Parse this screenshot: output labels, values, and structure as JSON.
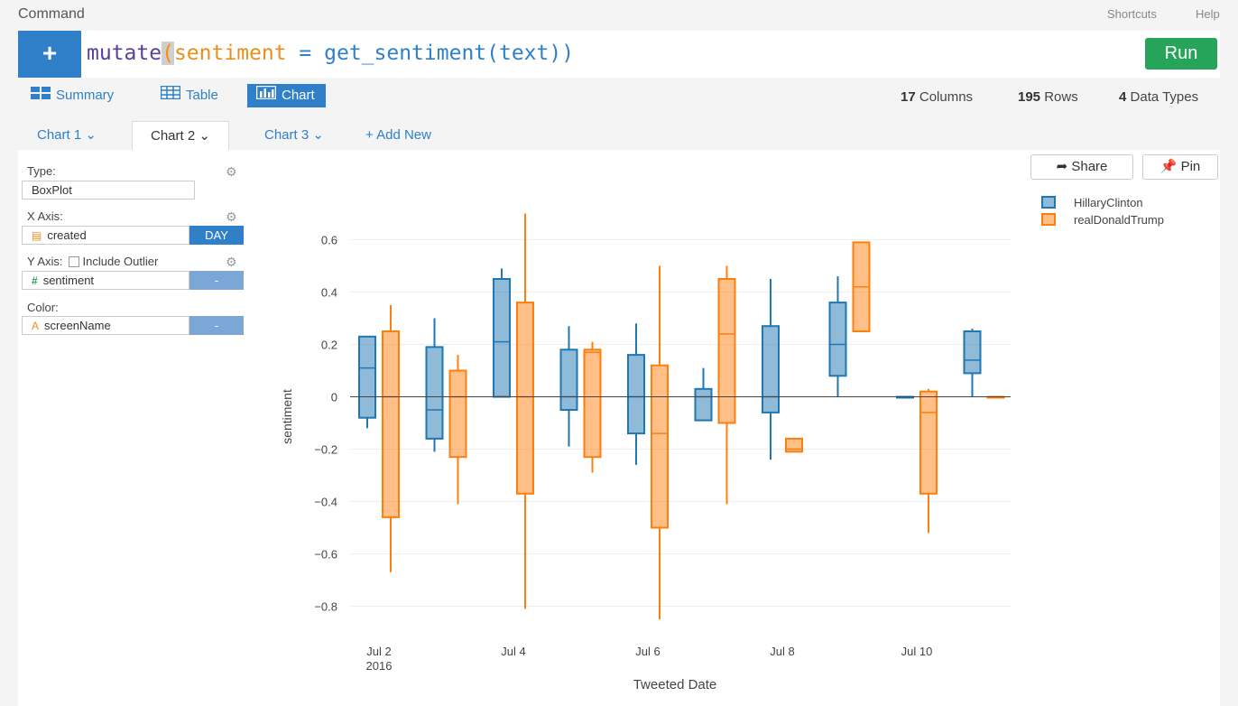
{
  "header": {
    "title": "Command",
    "shortcuts": "Shortcuts",
    "help": "Help"
  },
  "command": {
    "plus": "+",
    "fn": "mutate",
    "open_paren": "(",
    "arg": "sentiment",
    "eq": " = ",
    "call": "get_sentiment(text))",
    "run_label": "Run"
  },
  "view_tabs": {
    "summary": "Summary",
    "table": "Table",
    "chart": "Chart"
  },
  "stats": {
    "columns": "17",
    "columns_label": "Columns",
    "rows": "195",
    "rows_label": "Rows",
    "types": "4",
    "types_label": "Data Types"
  },
  "chart_tabs": {
    "tab1": "Chart 1",
    "tab2": "Chart 2",
    "tab3": "Chart 3",
    "add": "+ Add New"
  },
  "config": {
    "type_label": "Type:",
    "type_value": "BoxPlot",
    "x_label": "X Axis:",
    "x_value": "created",
    "x_unit": "DAY",
    "y_label": "Y Axis:",
    "y_include_outlier": "Include Outlier",
    "y_value": "sentiment",
    "y_btn": "-",
    "color_label": "Color:",
    "color_value": "screenName",
    "color_btn": "-"
  },
  "actions": {
    "share": "Share",
    "pin": "Pin"
  },
  "colors": {
    "accent": "#2f80c8",
    "run": "#26a55a",
    "clinton": "#1f77b4",
    "trump": "#ff7f0e"
  },
  "chart_data": {
    "type": "box",
    "xlabel": "Tweeted Date",
    "ylabel": "sentiment",
    "ylim": [
      -0.85,
      0.7
    ],
    "yticks": [
      0.6,
      0.4,
      0.2,
      0,
      -0.2,
      -0.4,
      -0.6,
      -0.8
    ],
    "ytick_labels": [
      "0.6",
      "0.4",
      "0.2",
      "0",
      "−0.2",
      "−0.4",
      "−0.6",
      "−0.8"
    ],
    "xticks": [
      "2016-07-02",
      "2016-07-04",
      "2016-07-06",
      "2016-07-08",
      "2016-07-10"
    ],
    "xtick_labels": [
      "Jul 2",
      "Jul 4",
      "Jul 6",
      "Jul 8",
      "Jul 10"
    ],
    "xtick_sub": "2016",
    "x_dates": [
      "2016-07-02",
      "2016-07-03",
      "2016-07-04",
      "2016-07-05",
      "2016-07-06",
      "2016-07-07",
      "2016-07-08",
      "2016-07-09",
      "2016-07-10",
      "2016-07-11"
    ],
    "legend_position": "top-right",
    "series": [
      {
        "name": "HillaryClinton",
        "boxes": [
          {
            "date": "2016-07-02",
            "min": -0.12,
            "q1": -0.08,
            "median": 0.11,
            "q3": 0.23,
            "max": 0.23
          },
          {
            "date": "2016-07-03",
            "min": -0.21,
            "q1": -0.16,
            "median": -0.05,
            "q3": 0.19,
            "max": 0.3
          },
          {
            "date": "2016-07-04",
            "min": 0.0,
            "q1": 0.0,
            "median": 0.21,
            "q3": 0.45,
            "max": 0.49
          },
          {
            "date": "2016-07-05",
            "min": -0.19,
            "q1": -0.05,
            "median": 0.0,
            "q3": 0.18,
            "max": 0.27
          },
          {
            "date": "2016-07-06",
            "min": -0.26,
            "q1": -0.14,
            "median": 0.0,
            "q3": 0.16,
            "max": 0.28
          },
          {
            "date": "2016-07-07",
            "min": -0.09,
            "q1": -0.09,
            "median": 0.0,
            "q3": 0.03,
            "max": 0.11
          },
          {
            "date": "2016-07-08",
            "min": -0.24,
            "q1": -0.06,
            "median": 0.0,
            "q3": 0.27,
            "max": 0.45
          },
          {
            "date": "2016-07-09",
            "min": 0.0,
            "q1": 0.08,
            "median": 0.2,
            "q3": 0.36,
            "max": 0.46
          },
          {
            "date": "2016-07-10",
            "min": 0.0,
            "q1": 0.0,
            "median": 0.0,
            "q3": 0.0,
            "max": 0.0
          },
          {
            "date": "2016-07-11",
            "min": 0.0,
            "q1": 0.09,
            "median": 0.14,
            "q3": 0.25,
            "max": 0.26
          }
        ]
      },
      {
        "name": "realDonaldTrump",
        "boxes": [
          {
            "date": "2016-07-02",
            "min": -0.67,
            "q1": -0.46,
            "median": 0.0,
            "q3": 0.25,
            "max": 0.35
          },
          {
            "date": "2016-07-03",
            "min": -0.41,
            "q1": -0.23,
            "median": 0.0,
            "q3": 0.1,
            "max": 0.16
          },
          {
            "date": "2016-07-04",
            "min": -0.81,
            "q1": -0.37,
            "median": 0.0,
            "q3": 0.36,
            "max": 0.7
          },
          {
            "date": "2016-07-05",
            "min": -0.29,
            "q1": -0.23,
            "median": 0.17,
            "q3": 0.18,
            "max": 0.21
          },
          {
            "date": "2016-07-06",
            "min": -0.85,
            "q1": -0.5,
            "median": -0.14,
            "q3": 0.12,
            "max": 0.5
          },
          {
            "date": "2016-07-07",
            "min": -0.41,
            "q1": -0.1,
            "median": 0.24,
            "q3": 0.45,
            "max": 0.5
          },
          {
            "date": "2016-07-08",
            "min": -0.21,
            "q1": -0.21,
            "median": -0.2,
            "q3": -0.16,
            "max": -0.16
          },
          {
            "date": "2016-07-09",
            "min": 0.25,
            "q1": 0.25,
            "median": 0.42,
            "q3": 0.59,
            "max": 0.59
          },
          {
            "date": "2016-07-10",
            "min": -0.52,
            "q1": -0.37,
            "median": -0.06,
            "q3": 0.02,
            "max": 0.03
          },
          {
            "date": "2016-07-11",
            "min": 0.0,
            "q1": 0.0,
            "median": 0.0,
            "q3": 0.0,
            "max": 0.0
          }
        ]
      }
    ]
  }
}
